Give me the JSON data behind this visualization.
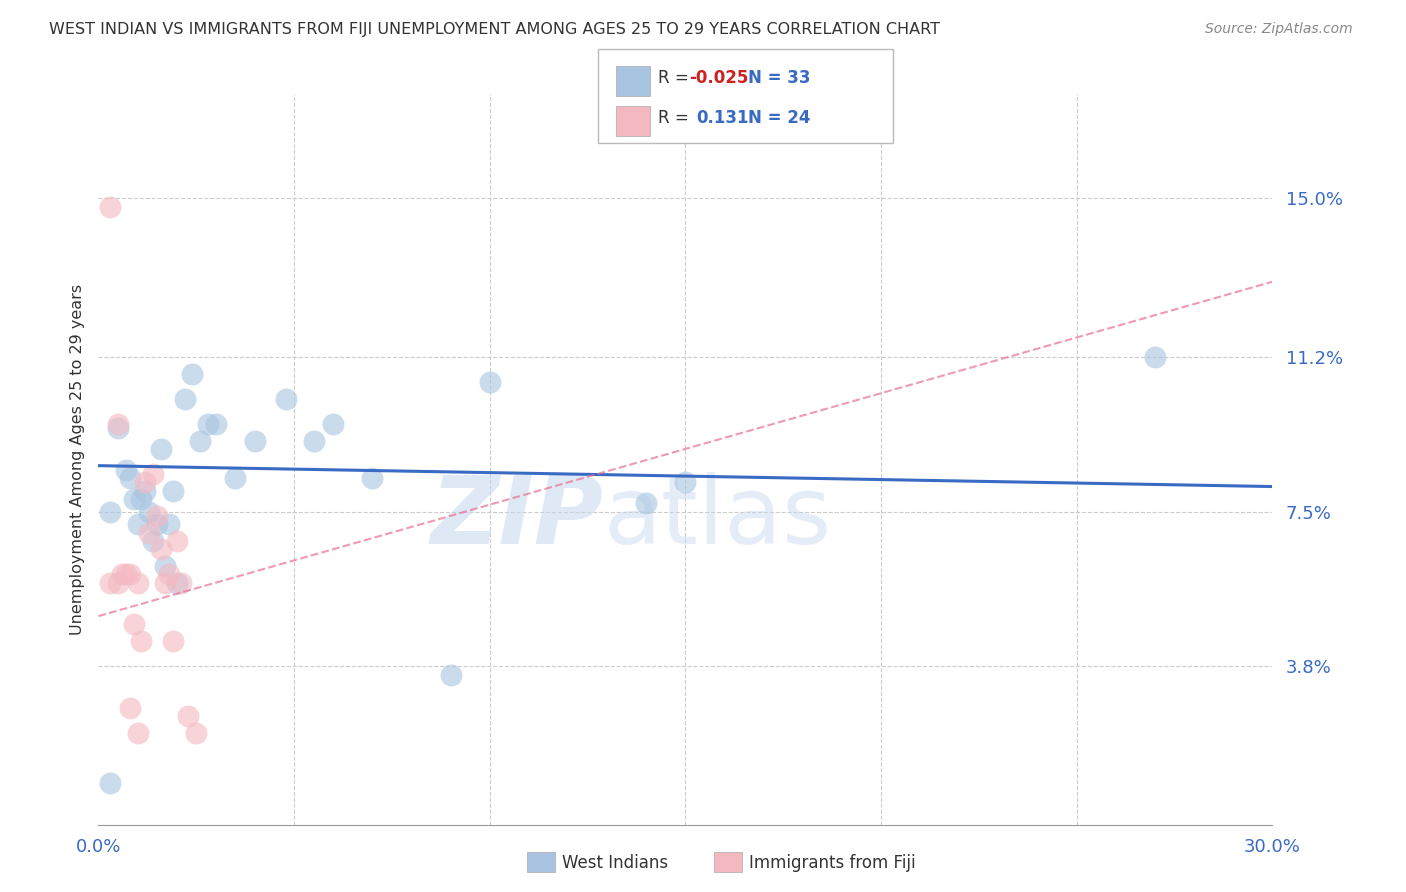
{
  "title": "WEST INDIAN VS IMMIGRANTS FROM FIJI UNEMPLOYMENT AMONG AGES 25 TO 29 YEARS CORRELATION CHART",
  "source": "Source: ZipAtlas.com",
  "ylabel": "Unemployment Among Ages 25 to 29 years",
  "xlim": [
    0.0,
    0.3
  ],
  "ylim": [
    0.0,
    0.175
  ],
  "ytick_labels_right": [
    "15.0%",
    "11.2%",
    "7.5%",
    "3.8%"
  ],
  "ytick_vals_right": [
    0.15,
    0.112,
    0.075,
    0.038
  ],
  "grid_color": "#cccccc",
  "background_color": "#ffffff",
  "watermark_zip": "ZIP",
  "watermark_atlas": "atlas",
  "blue_color": "#a8c4e0",
  "pink_color": "#f4b8c1",
  "line_blue": "#3a6bc4",
  "line_pink": "#e87090",
  "text_dark": "#333333",
  "text_blue": "#3a6bc4",
  "text_red": "#cc2222",
  "west_indians_x": [
    0.003,
    0.005,
    0.007,
    0.008,
    0.009,
    0.01,
    0.011,
    0.012,
    0.013,
    0.014,
    0.015,
    0.016,
    0.017,
    0.018,
    0.019,
    0.02,
    0.022,
    0.024,
    0.026,
    0.028,
    0.03,
    0.035,
    0.04,
    0.048,
    0.055,
    0.06,
    0.07,
    0.09,
    0.1,
    0.15,
    0.27,
    0.003,
    0.14
  ],
  "west_indians_y": [
    0.075,
    0.095,
    0.085,
    0.083,
    0.078,
    0.072,
    0.078,
    0.08,
    0.075,
    0.068,
    0.072,
    0.09,
    0.062,
    0.072,
    0.08,
    0.058,
    0.102,
    0.108,
    0.092,
    0.096,
    0.096,
    0.083,
    0.092,
    0.102,
    0.092,
    0.096,
    0.083,
    0.036,
    0.106,
    0.082,
    0.112,
    0.01,
    0.077
  ],
  "fiji_x": [
    0.003,
    0.005,
    0.006,
    0.008,
    0.01,
    0.012,
    0.014,
    0.016,
    0.018,
    0.02,
    0.003,
    0.005,
    0.007,
    0.009,
    0.011,
    0.013,
    0.015,
    0.017,
    0.019,
    0.021,
    0.023,
    0.025,
    0.008,
    0.01
  ],
  "fiji_y": [
    0.148,
    0.096,
    0.06,
    0.06,
    0.058,
    0.082,
    0.084,
    0.066,
    0.06,
    0.068,
    0.058,
    0.058,
    0.06,
    0.048,
    0.044,
    0.07,
    0.074,
    0.058,
    0.044,
    0.058,
    0.026,
    0.022,
    0.028,
    0.022
  ],
  "blue_line_x": [
    0.0,
    0.3
  ],
  "blue_line_y": [
    0.086,
    0.081
  ],
  "pink_line_x0": 0.0,
  "pink_line_x1": 0.3,
  "pink_line_y0": 0.05,
  "pink_line_y1": 0.13
}
